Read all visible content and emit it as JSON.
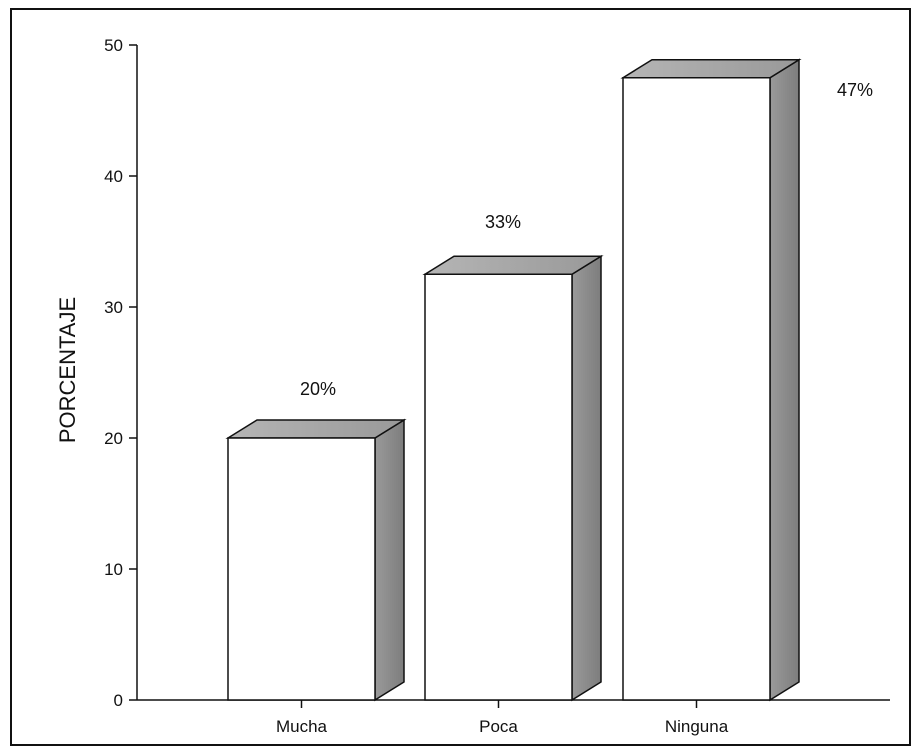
{
  "chart_data": {
    "type": "bar",
    "categories": [
      "Mucha",
      "Poca",
      "Ninguna"
    ],
    "values": [
      20,
      32.5,
      47.5
    ],
    "data_labels": [
      "20%",
      "33%",
      "47%"
    ],
    "title": "",
    "xlabel": "",
    "ylabel": "PORCENTAJE",
    "ylim": [
      0,
      50
    ],
    "yticks": [
      0,
      10,
      20,
      30,
      40,
      50
    ],
    "grid": false,
    "legend": "none",
    "style": "3d-bars",
    "colors": {
      "bar_face": "#ffffff",
      "bar_side": "#8c8c8c",
      "bar_top": "#a6a6a6",
      "outline": "#111111"
    }
  }
}
